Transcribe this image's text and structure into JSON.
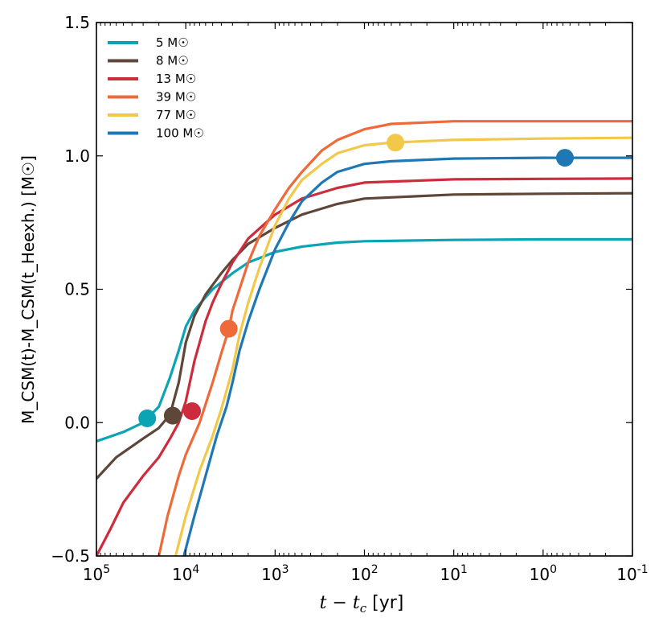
{
  "chart_data": {
    "type": "line",
    "title": "",
    "xlabel": {
      "pre": "t − t",
      "sub": "c",
      "post": " [yr]"
    },
    "ylabel": "M_CSM(t)-M_CSM(t_Heexh.) [M☉]",
    "xscale": "log-reversed",
    "xlim": [
      100000,
      0.1
    ],
    "ylim": [
      -0.5,
      1.5
    ],
    "xticks": [
      {
        "value": 100000,
        "base": "10",
        "exp": "5"
      },
      {
        "value": 10000,
        "base": "10",
        "exp": "4"
      },
      {
        "value": 1000,
        "base": "10",
        "exp": "3"
      },
      {
        "value": 100,
        "base": "10",
        "exp": "2"
      },
      {
        "value": 10,
        "base": "10",
        "exp": "1"
      },
      {
        "value": 1,
        "base": "10",
        "exp": "0"
      },
      {
        "value": 0.1,
        "base": "10",
        "exp": "-1"
      }
    ],
    "yticks": [
      {
        "value": -0.5,
        "label": "−0.5"
      },
      {
        "value": 0.0,
        "label": "0.0"
      },
      {
        "value": 0.5,
        "label": "0.5"
      },
      {
        "value": 1.0,
        "label": "1.0"
      },
      {
        "value": 1.5,
        "label": "1.5"
      }
    ],
    "legend_position": "top-left",
    "series": [
      {
        "name": "5 M☉",
        "color": "#0aa4b4",
        "points": [
          [
            100000,
            -0.07
          ],
          [
            50000,
            -0.035
          ],
          [
            30000,
            0.0
          ],
          [
            20000,
            0.06
          ],
          [
            15000,
            0.17
          ],
          [
            12000,
            0.27
          ],
          [
            10000,
            0.36
          ],
          [
            8000,
            0.42
          ],
          [
            6000,
            0.47
          ],
          [
            5000,
            0.5
          ],
          [
            3000,
            0.56
          ],
          [
            2000,
            0.6
          ],
          [
            1000,
            0.64
          ],
          [
            500,
            0.66
          ],
          [
            200,
            0.675
          ],
          [
            100,
            0.68
          ],
          [
            10,
            0.685
          ],
          [
            1,
            0.687
          ],
          [
            0.1,
            0.687
          ]
        ],
        "marker": [
          27000,
          0.016
        ]
      },
      {
        "name": "8 M☉",
        "color": "#5e4638",
        "points": [
          [
            100000,
            -0.21
          ],
          [
            60000,
            -0.13
          ],
          [
            30000,
            -0.06
          ],
          [
            20000,
            -0.02
          ],
          [
            15000,
            0.03
          ],
          [
            12000,
            0.15
          ],
          [
            10000,
            0.3
          ],
          [
            8000,
            0.4
          ],
          [
            6000,
            0.48
          ],
          [
            4000,
            0.56
          ],
          [
            3000,
            0.61
          ],
          [
            2000,
            0.67
          ],
          [
            1000,
            0.73
          ],
          [
            500,
            0.78
          ],
          [
            200,
            0.82
          ],
          [
            100,
            0.84
          ],
          [
            10,
            0.855
          ],
          [
            1,
            0.858
          ],
          [
            0.1,
            0.86
          ]
        ],
        "marker": [
          14000,
          0.026
        ]
      },
      {
        "name": "13 M☉",
        "color": "#cd2c3c",
        "points": [
          [
            100000,
            -0.5
          ],
          [
            70000,
            -0.4
          ],
          [
            50000,
            -0.3
          ],
          [
            30000,
            -0.2
          ],
          [
            20000,
            -0.13
          ],
          [
            15000,
            -0.06
          ],
          [
            12000,
            0.0
          ],
          [
            10000,
            0.08
          ],
          [
            8000,
            0.23
          ],
          [
            6000,
            0.38
          ],
          [
            5000,
            0.45
          ],
          [
            4000,
            0.52
          ],
          [
            3000,
            0.6
          ],
          [
            2000,
            0.69
          ],
          [
            1000,
            0.78
          ],
          [
            500,
            0.84
          ],
          [
            200,
            0.88
          ],
          [
            100,
            0.9
          ],
          [
            10,
            0.912
          ],
          [
            1,
            0.914
          ],
          [
            0.1,
            0.915
          ]
        ],
        "marker": [
          8500,
          0.043
        ]
      },
      {
        "name": "39 M☉",
        "color": "#ee6a3a",
        "points": [
          [
            20000,
            -0.5
          ],
          [
            16000,
            -0.35
          ],
          [
            12000,
            -0.2
          ],
          [
            10000,
            -0.12
          ],
          [
            7000,
            0.0
          ],
          [
            5000,
            0.15
          ],
          [
            4000,
            0.26
          ],
          [
            3300,
            0.35
          ],
          [
            3000,
            0.42
          ],
          [
            2000,
            0.6
          ],
          [
            1500,
            0.7
          ],
          [
            1000,
            0.8
          ],
          [
            700,
            0.88
          ],
          [
            500,
            0.94
          ],
          [
            300,
            1.02
          ],
          [
            200,
            1.06
          ],
          [
            100,
            1.1
          ],
          [
            50,
            1.12
          ],
          [
            10,
            1.13
          ],
          [
            1,
            1.13
          ],
          [
            0.1,
            1.13
          ]
        ],
        "marker": [
          3300,
          0.352
        ]
      },
      {
        "name": "77 M☉",
        "color": "#f2c84b",
        "points": [
          [
            13000,
            -0.5
          ],
          [
            10000,
            -0.35
          ],
          [
            7000,
            -0.18
          ],
          [
            5000,
            -0.05
          ],
          [
            4000,
            0.05
          ],
          [
            3000,
            0.2
          ],
          [
            2500,
            0.33
          ],
          [
            2000,
            0.45
          ],
          [
            1500,
            0.58
          ],
          [
            1000,
            0.74
          ],
          [
            700,
            0.84
          ],
          [
            500,
            0.91
          ],
          [
            300,
            0.97
          ],
          [
            200,
            1.01
          ],
          [
            100,
            1.04
          ],
          [
            50,
            1.05
          ],
          [
            10,
            1.06
          ],
          [
            1,
            1.065
          ],
          [
            0.1,
            1.068
          ]
        ],
        "marker": [
          45,
          1.05
        ]
      },
      {
        "name": "100 M☉",
        "color": "#1f78b4",
        "points": [
          [
            10500,
            -0.5
          ],
          [
            8000,
            -0.35
          ],
          [
            6000,
            -0.2
          ],
          [
            4500,
            -0.05
          ],
          [
            3500,
            0.06
          ],
          [
            3000,
            0.15
          ],
          [
            2500,
            0.27
          ],
          [
            2000,
            0.38
          ],
          [
            1500,
            0.5
          ],
          [
            1000,
            0.65
          ],
          [
            700,
            0.75
          ],
          [
            500,
            0.83
          ],
          [
            300,
            0.9
          ],
          [
            200,
            0.94
          ],
          [
            100,
            0.97
          ],
          [
            50,
            0.98
          ],
          [
            10,
            0.99
          ],
          [
            1,
            0.993
          ],
          [
            0.1,
            0.993
          ]
        ],
        "marker": [
          0.57,
          0.993
        ]
      }
    ]
  }
}
